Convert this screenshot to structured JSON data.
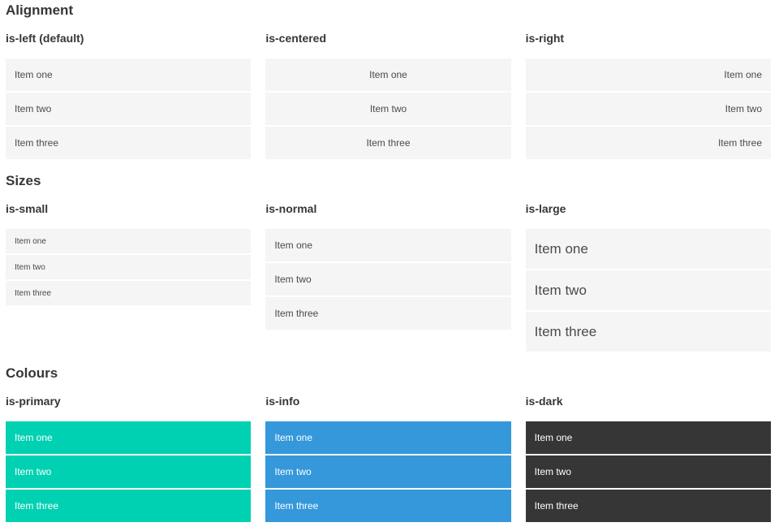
{
  "sections": [
    {
      "title": "Alignment",
      "columns": [
        {
          "subtitle": "is-left (default)",
          "items": [
            "Item one",
            "Item two",
            "Item three"
          ]
        },
        {
          "subtitle": "is-centered",
          "items": [
            "Item one",
            "Item two",
            "Item three"
          ]
        },
        {
          "subtitle": "is-right",
          "items": [
            "Item one",
            "Item two",
            "Item three"
          ]
        }
      ]
    },
    {
      "title": "Sizes",
      "columns": [
        {
          "subtitle": "is-small",
          "items": [
            "Item one",
            "Item two",
            "Item three"
          ]
        },
        {
          "subtitle": "is-normal",
          "items": [
            "Item one",
            "Item two",
            "Item three"
          ]
        },
        {
          "subtitle": "is-large",
          "items": [
            "Item one",
            "Item two",
            "Item three"
          ]
        }
      ]
    },
    {
      "title": "Colours",
      "columns": [
        {
          "subtitle": "is-primary",
          "items": [
            "Item one",
            "Item two",
            "Item three"
          ]
        },
        {
          "subtitle": "is-info",
          "items": [
            "Item one",
            "Item two",
            "Item three"
          ]
        },
        {
          "subtitle": "is-dark",
          "items": [
            "Item one",
            "Item two",
            "Item three"
          ]
        }
      ]
    }
  ],
  "colors": {
    "primary": "#00d1b2",
    "info": "#3498db",
    "dark": "#363636",
    "item_background": "#f5f5f5",
    "item_text": "#4a4a4a",
    "heading_text": "#363636",
    "colored_item_text": "#ffffff"
  }
}
